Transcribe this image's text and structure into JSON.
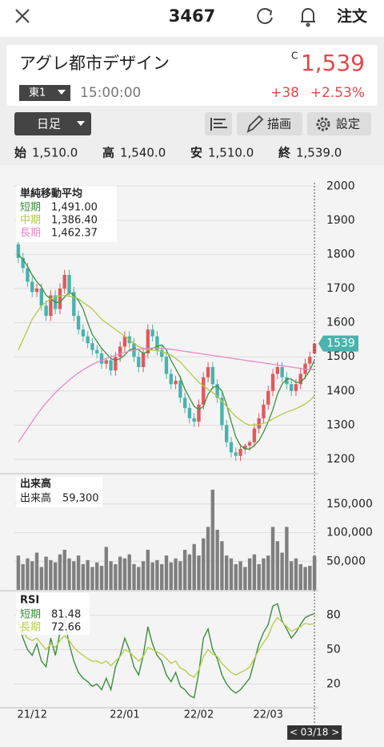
{
  "header": {
    "title": "3467",
    "order": "注文"
  },
  "quote": {
    "name": "アグレ都市デザイン",
    "c_mark": "C",
    "price": "1,539",
    "market": "東1",
    "time": "15:00:00",
    "change": "+38",
    "change_pct": "+2.53%"
  },
  "toolbar": {
    "period": "日足",
    "draw": "描画",
    "settings": "設定"
  },
  "ohlc": [
    {
      "label": "始",
      "value": "1,510.0"
    },
    {
      "label": "高",
      "value": "1,540.0"
    },
    {
      "label": "安",
      "value": "1,510.0"
    },
    {
      "label": "終",
      "value": "1,539.0"
    }
  ],
  "chart_data": [
    {
      "type": "candlestick",
      "title": "単純移動平均",
      "categories": [
        null,
        null,
        null,
        "21/12",
        null,
        null,
        null,
        null,
        null,
        null,
        null,
        null,
        null,
        null,
        null,
        null,
        null,
        null,
        null,
        null,
        null,
        null,
        null,
        "22/01",
        null,
        null,
        null,
        null,
        null,
        null,
        null,
        null,
        null,
        null,
        null,
        null,
        null,
        null,
        null,
        "22/02",
        null,
        null,
        null,
        null,
        null,
        null,
        null,
        null,
        null,
        null,
        null,
        null,
        null,
        null,
        "22/03",
        null,
        null,
        null,
        null,
        null,
        null,
        null,
        null,
        null,
        null
      ],
      "open": [
        1830,
        1790,
        1760,
        1720,
        1690,
        1700,
        1650,
        1620,
        1680,
        1640,
        1700,
        1740,
        1690,
        1620,
        1580,
        1560,
        1540,
        1520,
        1510,
        1480,
        1490,
        1460,
        1500,
        1530,
        1560,
        1540,
        1500,
        1470,
        1510,
        1580,
        1560,
        1520,
        1500,
        1450,
        1420,
        1430,
        1380,
        1350,
        1320,
        1310,
        1360,
        1440,
        1470,
        1420,
        1380,
        1300,
        1250,
        1220,
        1210,
        1230,
        1240,
        1250,
        1290,
        1320,
        1360,
        1400,
        1450,
        1470,
        1440,
        1420,
        1400,
        1420,
        1450,
        1480,
        1510
      ],
      "high": [
        1845,
        1805,
        1775,
        1735,
        1715,
        1715,
        1665,
        1695,
        1695,
        1715,
        1755,
        1755,
        1705,
        1635,
        1595,
        1575,
        1555,
        1535,
        1525,
        1495,
        1505,
        1515,
        1545,
        1575,
        1575,
        1555,
        1515,
        1525,
        1595,
        1595,
        1575,
        1535,
        1515,
        1465,
        1445,
        1445,
        1395,
        1365,
        1335,
        1375,
        1455,
        1485,
        1485,
        1435,
        1395,
        1315,
        1265,
        1235,
        1245,
        1245,
        1255,
        1305,
        1335,
        1375,
        1415,
        1465,
        1485,
        1485,
        1455,
        1435,
        1435,
        1465,
        1495,
        1515,
        1540
      ],
      "low": [
        1775,
        1745,
        1705,
        1675,
        1675,
        1635,
        1605,
        1605,
        1625,
        1625,
        1685,
        1675,
        1605,
        1565,
        1545,
        1525,
        1505,
        1495,
        1465,
        1465,
        1445,
        1445,
        1485,
        1515,
        1525,
        1485,
        1455,
        1455,
        1495,
        1545,
        1505,
        1485,
        1435,
        1405,
        1405,
        1365,
        1335,
        1305,
        1295,
        1295,
        1345,
        1425,
        1405,
        1365,
        1285,
        1235,
        1205,
        1195,
        1195,
        1215,
        1225,
        1235,
        1275,
        1305,
        1345,
        1385,
        1435,
        1425,
        1405,
        1385,
        1385,
        1405,
        1435,
        1465,
        1510
      ],
      "close": [
        1790,
        1760,
        1720,
        1690,
        1700,
        1650,
        1620,
        1680,
        1640,
        1700,
        1740,
        1690,
        1620,
        1580,
        1560,
        1540,
        1520,
        1510,
        1480,
        1490,
        1460,
        1500,
        1530,
        1560,
        1540,
        1500,
        1470,
        1510,
        1580,
        1560,
        1520,
        1500,
        1450,
        1420,
        1430,
        1380,
        1350,
        1320,
        1310,
        1360,
        1440,
        1470,
        1420,
        1380,
        1300,
        1250,
        1220,
        1210,
        1230,
        1240,
        1250,
        1290,
        1320,
        1360,
        1400,
        1450,
        1470,
        1440,
        1420,
        1400,
        1420,
        1450,
        1480,
        1500,
        1539
      ],
      "up_color": "#e2585c",
      "down_color": "#49b3ad",
      "series": [
        {
          "name": "短期",
          "color": "#3f8f3f",
          "value_label": "1,491.00",
          "values": [
            1800,
            1785,
            1765,
            1740,
            1720,
            1705,
            1680,
            1670,
            1660,
            1660,
            1675,
            1690,
            1680,
            1665,
            1640,
            1600,
            1565,
            1545,
            1525,
            1510,
            1495,
            1490,
            1495,
            1505,
            1520,
            1525,
            1520,
            1510,
            1515,
            1525,
            1530,
            1535,
            1520,
            1490,
            1465,
            1440,
            1405,
            1380,
            1355,
            1345,
            1355,
            1390,
            1410,
            1415,
            1400,
            1360,
            1310,
            1265,
            1240,
            1230,
            1230,
            1240,
            1255,
            1280,
            1310,
            1345,
            1390,
            1420,
            1435,
            1435,
            1425,
            1425,
            1440,
            1460,
            1491
          ]
        },
        {
          "name": "中期",
          "color": "#b4c947",
          "value_label": "1,386.40",
          "values": [
            1520,
            1550,
            1580,
            1610,
            1630,
            1650,
            1660,
            1670,
            1675,
            1678,
            1680,
            1678,
            1675,
            1670,
            1660,
            1650,
            1640,
            1625,
            1610,
            1600,
            1590,
            1580,
            1570,
            1560,
            1550,
            1540,
            1530,
            1525,
            1520,
            1520,
            1518,
            1515,
            1510,
            1505,
            1495,
            1485,
            1470,
            1455,
            1440,
            1425,
            1415,
            1405,
            1395,
            1385,
            1370,
            1355,
            1340,
            1325,
            1315,
            1305,
            1300,
            1300,
            1302,
            1305,
            1310,
            1318,
            1325,
            1332,
            1338,
            1343,
            1348,
            1355,
            1362,
            1372,
            1386.4
          ]
        },
        {
          "name": "長期",
          "color": "#e48cc6",
          "value_label": "1,462.37",
          "values": [
            1250,
            1270,
            1290,
            1310,
            1330,
            1348,
            1365,
            1380,
            1395,
            1408,
            1420,
            1432,
            1443,
            1453,
            1462,
            1470,
            1477,
            1484,
            1490,
            1495,
            1500,
            1505,
            1509,
            1513,
            1517,
            1520,
            1522,
            1524,
            1525,
            1526,
            1526,
            1525,
            1524,
            1522,
            1520,
            1518,
            1516,
            1514,
            1512,
            1510,
            1508,
            1506,
            1504,
            1502,
            1500,
            1498,
            1496,
            1494,
            1492,
            1490,
            1488,
            1486,
            1484,
            1482,
            1480,
            1478,
            1476,
            1474,
            1472,
            1470,
            1468,
            1466,
            1464,
            1463,
            1462.37
          ]
        }
      ],
      "ylim": [
        1160,
        2010
      ],
      "yticks": [
        1200,
        1300,
        1400,
        1500,
        1600,
        1700,
        1800,
        1900,
        2000
      ],
      "price_tag": "1539",
      "cursor_label": "< 03/18 >"
    },
    {
      "type": "bar",
      "title": "出来高",
      "legend_name": "出来高",
      "value_label": "59,300",
      "color": "#7f7f7f",
      "values": [
        60000,
        45000,
        55000,
        50000,
        65000,
        40000,
        58000,
        52000,
        48000,
        62000,
        70000,
        55000,
        50000,
        60000,
        45000,
        52000,
        40000,
        48000,
        42000,
        75000,
        50000,
        45000,
        58000,
        55000,
        62000,
        45000,
        40000,
        50000,
        70000,
        48000,
        52000,
        45000,
        60000,
        48000,
        55000,
        50000,
        70000,
        62000,
        80000,
        60000,
        90000,
        110000,
        175000,
        105000,
        85000,
        60000,
        55000,
        45000,
        50000,
        40000,
        55000,
        62000,
        45000,
        55000,
        60000,
        110000,
        85000,
        65000,
        110000,
        50000,
        55000,
        45000,
        40000,
        42000,
        59300
      ],
      "ylim": [
        0,
        200000
      ],
      "yticks": [
        {
          "value": 50000,
          "label": "50,000"
        },
        {
          "value": 100000,
          "label": "100,000"
        },
        {
          "value": 150000,
          "label": "150,000"
        }
      ]
    },
    {
      "type": "line",
      "title": "RSI",
      "series": [
        {
          "name": "短期",
          "color": "#3d8c3d",
          "values": [
            75,
            60,
            50,
            45,
            55,
            40,
            35,
            60,
            45,
            65,
            75,
            55,
            40,
            30,
            25,
            22,
            18,
            20,
            15,
            25,
            15,
            35,
            45,
            60,
            50,
            35,
            28,
            45,
            70,
            55,
            45,
            40,
            28,
            22,
            30,
            18,
            15,
            10,
            8,
            30,
            60,
            68,
            50,
            42,
            28,
            20,
            15,
            12,
            15,
            20,
            25,
            40,
            55,
            65,
            72,
            88,
            90,
            75,
            68,
            60,
            65,
            72,
            78,
            80,
            81.48
          ]
        },
        {
          "name": "長期",
          "color": "#b8cf4f",
          "values": [
            70,
            65,
            60,
            58,
            60,
            55,
            50,
            55,
            52,
            58,
            62,
            58,
            52,
            48,
            45,
            42,
            40,
            40,
            38,
            40,
            36,
            40,
            44,
            50,
            48,
            44,
            40,
            44,
            52,
            50,
            48,
            46,
            42,
            38,
            40,
            34,
            32,
            28,
            26,
            32,
            44,
            50,
            46,
            44,
            38,
            34,
            30,
            28,
            30,
            32,
            35,
            42,
            50,
            56,
            62,
            72,
            78,
            74,
            70,
            66,
            68,
            70,
            73,
            72,
            72.66
          ]
        }
      ],
      "ylim": [
        0,
        100
      ],
      "yticks": [
        20,
        50,
        80
      ]
    }
  ]
}
